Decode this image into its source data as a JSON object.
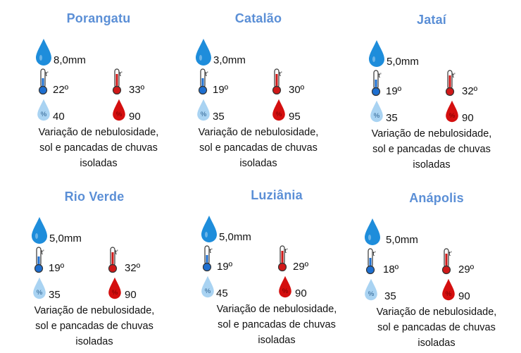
{
  "icons": {
    "rain": "raindrop-icon",
    "temp_min": "thermometer-cold-icon",
    "temp_max": "thermometer-hot-icon",
    "humidity_min": "humidity-low-icon",
    "humidity_max": "humidity-high-icon"
  },
  "colors": {
    "city_title": "#5b8fd6",
    "rain_drop": "#1e8ddb",
    "cold": "#1e6fd0",
    "hot": "#d01818",
    "humidity_low": "#a9d3f2",
    "humidity_high": "#d40f0f"
  },
  "thermo_label": "t'",
  "humidity_symbol": "%",
  "cities": [
    {
      "name": "Porangatu",
      "rain": "8,0mm",
      "temp_min": "22º",
      "temp_max": "33º",
      "hum_min": "40",
      "hum_max": "90",
      "desc": [
        "Variação de nebulosidade,",
        "sol e pancadas de chuvas",
        "isoladas"
      ]
    },
    {
      "name": "Catalão",
      "rain": "3,0mm",
      "temp_min": "19º",
      "temp_max": "30º",
      "hum_min": "35",
      "hum_max": "95",
      "desc": [
        "Variação de nebulosidade,",
        "sol e pancadas de chuvas",
        "isoladas"
      ]
    },
    {
      "name": "Jataí",
      "rain": "5,0mm",
      "temp_min": "19º",
      "temp_max": "32º",
      "hum_min": "35",
      "hum_max": "90",
      "desc": [
        "Variação de nebulosidade,",
        "sol e pancadas de chuvas",
        "isoladas"
      ]
    },
    {
      "name": "Rio Verde",
      "rain": "5,0mm",
      "temp_min": "19º",
      "temp_max": "32º",
      "hum_min": "35",
      "hum_max": "90",
      "desc": [
        "Variação de nebulosidade,",
        "sol e pancadas de chuvas",
        "isoladas"
      ]
    },
    {
      "name": "Luziânia",
      "rain": "5,0mm",
      "temp_min": "19º",
      "temp_max": "29º",
      "hum_min": "45",
      "hum_max": "90",
      "desc": [
        "Variação de nebulosidade,",
        "sol e pancadas de chuvas",
        "isoladas"
      ]
    },
    {
      "name": "Anápolis",
      "rain": "5,0mm",
      "temp_min": "18º",
      "temp_max": "29º",
      "hum_min": "35",
      "hum_max": "90",
      "desc": [
        "Variação de nebulosidade,",
        "sol e pancadas de chuvas",
        "isoladas"
      ]
    }
  ]
}
